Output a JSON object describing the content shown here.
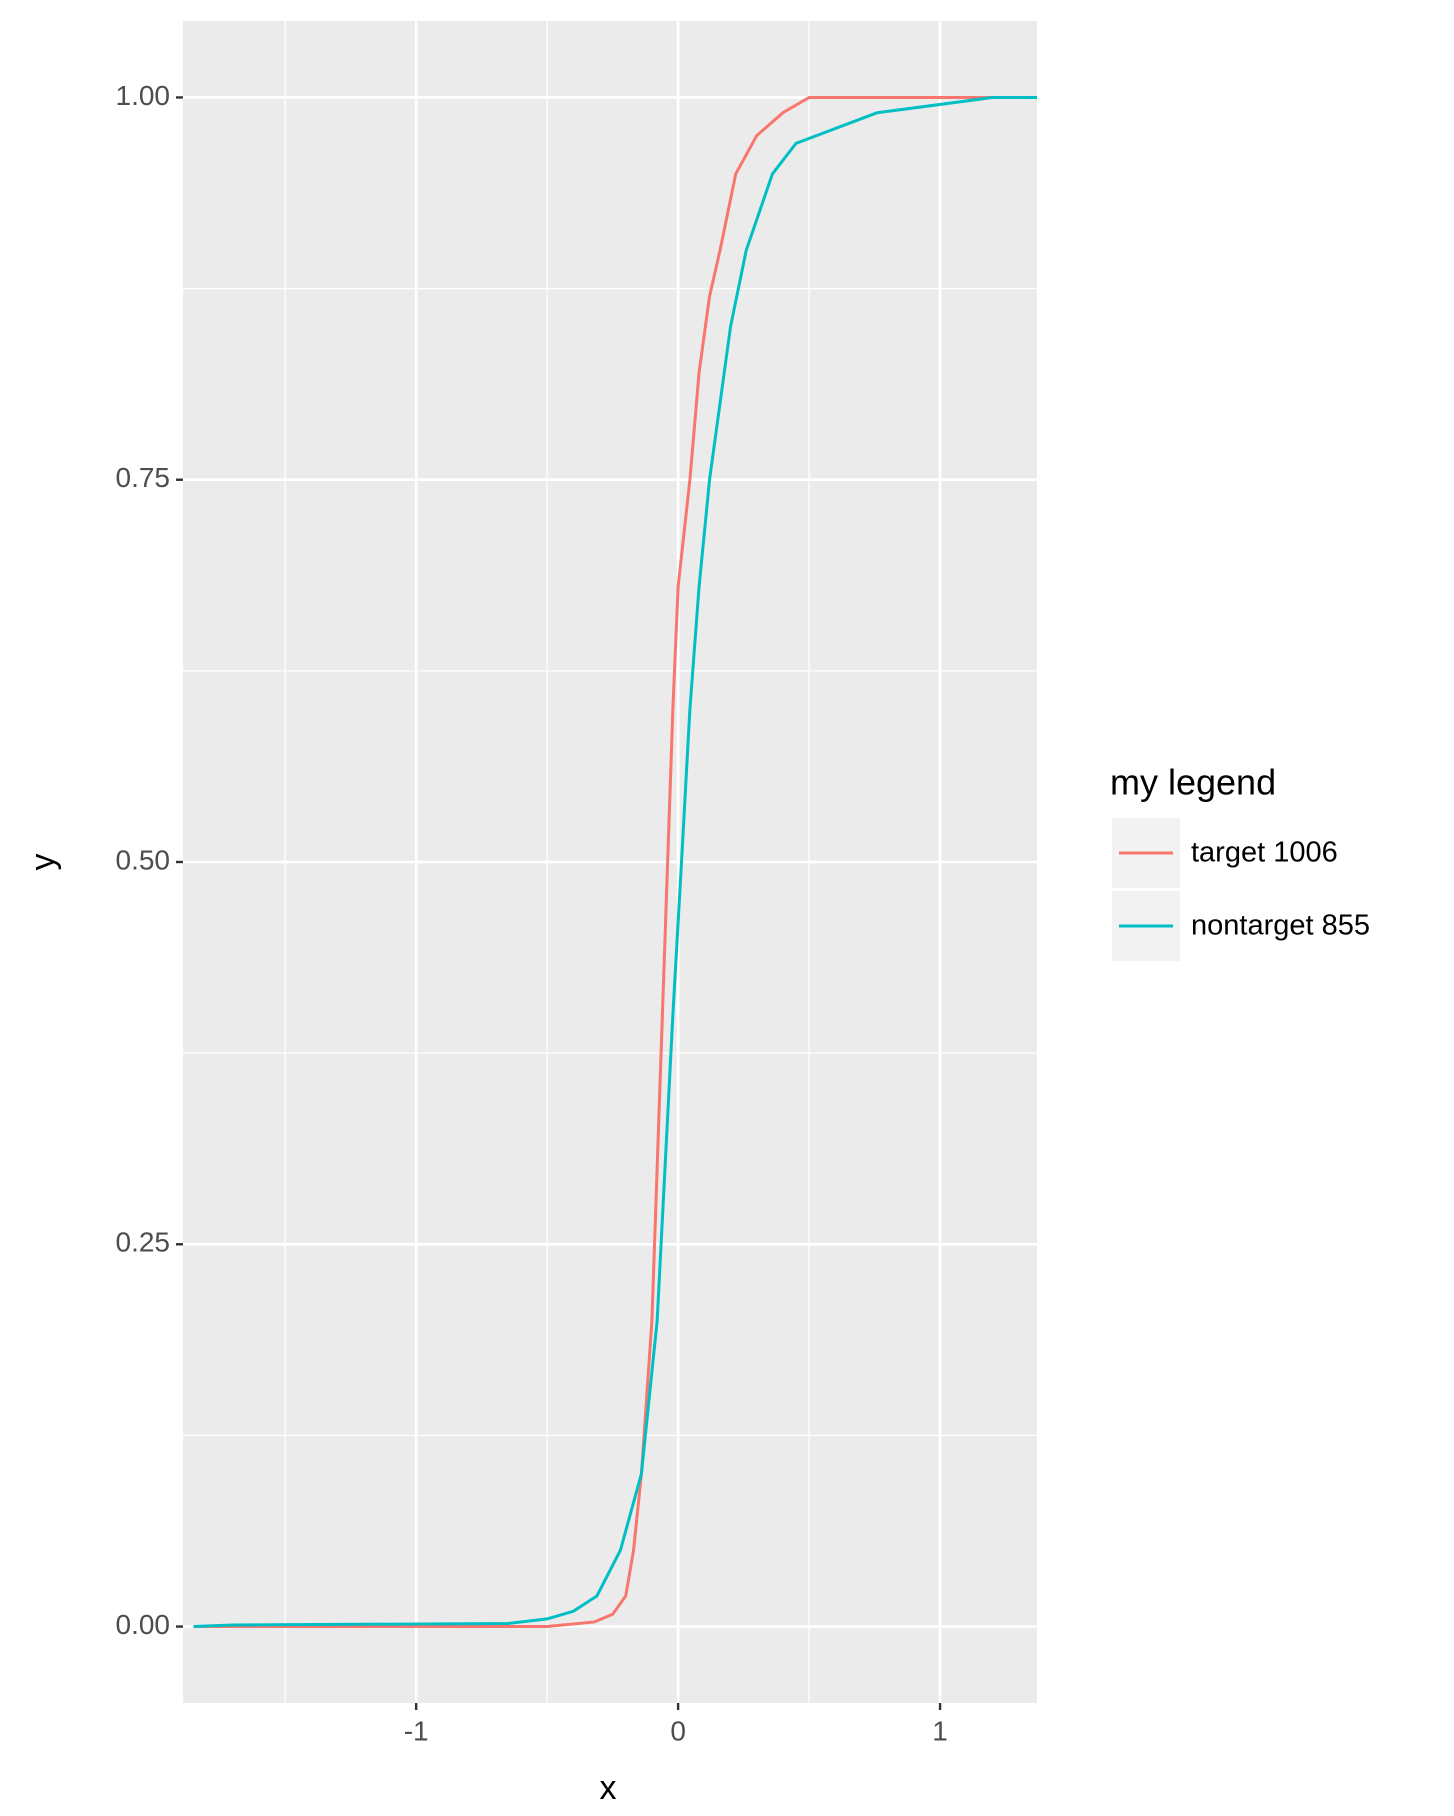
{
  "chart_data": {
    "type": "line",
    "x_label": "x",
    "y_label": "y",
    "legend_title": "my legend",
    "legend_position": "right",
    "xlim": [
      -1.89,
      1.37
    ],
    "ylim": [
      -0.05,
      1.05
    ],
    "xticks": [
      -1,
      0,
      1
    ],
    "yticks": [
      {
        "value": 0,
        "label": "0.00"
      },
      {
        "value": 0.25,
        "label": "0.25"
      },
      {
        "value": 0.5,
        "label": "0.50"
      },
      {
        "value": 0.75,
        "label": "0.75"
      },
      {
        "value": 1,
        "label": "1.00"
      }
    ],
    "x_minor_ticks": [
      -1.5,
      -0.5,
      0.5
    ],
    "y_minor_ticks": [
      0.125,
      0.375,
      0.625,
      0.875
    ],
    "grid": true,
    "series": [
      {
        "name": "target 1006",
        "color": "#f8766d",
        "x": [
          -1.85,
          -0.5,
          -0.32,
          -0.25,
          -0.2,
          -0.17,
          -0.14,
          -0.1,
          -0.08,
          -0.06,
          -0.04,
          -0.02,
          0.0,
          0.045,
          0.08,
          0.12,
          0.16,
          0.22,
          0.3,
          0.4,
          0.5,
          1.37
        ],
        "values": [
          0,
          0,
          0.003,
          0.008,
          0.02,
          0.05,
          0.1,
          0.2,
          0.3,
          0.4,
          0.5,
          0.6,
          0.68,
          0.75,
          0.82,
          0.87,
          0.9,
          0.95,
          0.975,
          0.99,
          1.0,
          1.0
        ]
      },
      {
        "name": "nontarget 855",
        "color": "#00bfc4",
        "x": [
          -1.85,
          -1.7,
          -0.65,
          -0.5,
          -0.4,
          -0.31,
          -0.22,
          -0.14,
          -0.08,
          -0.05,
          -0.02,
          0.013,
          0.045,
          0.08,
          0.12,
          0.2,
          0.26,
          0.36,
          0.45,
          0.76,
          1.2,
          1.37
        ],
        "values": [
          0,
          0.001,
          0.002,
          0.005,
          0.01,
          0.02,
          0.05,
          0.1,
          0.2,
          0.3,
          0.4,
          0.5,
          0.6,
          0.68,
          0.75,
          0.85,
          0.9,
          0.95,
          0.97,
          0.99,
          1.0,
          1.0
        ]
      }
    ]
  }
}
